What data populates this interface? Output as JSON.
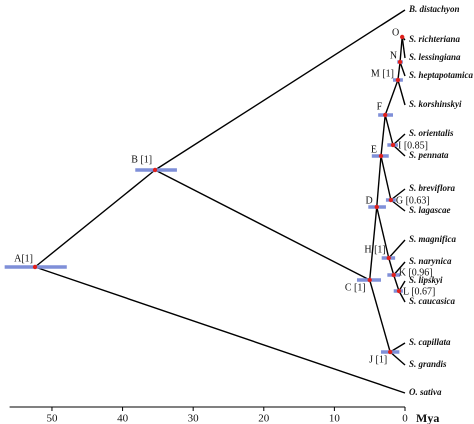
{
  "chart_data": {
    "type": "tree",
    "x_label": "Mya",
    "xlim": [
      56,
      0
    ],
    "xticks": [
      50,
      40,
      30,
      20,
      10,
      0
    ],
    "tips": [
      "B. distachyon",
      "S. richteriana",
      "S. lessingiana",
      "S. heptapotamica",
      "S. korshinskyi",
      "S. orientalis",
      "S. pennata",
      "S. breviflora",
      "S. lagascae",
      "S. magnifica",
      "S. narynica",
      "S. lipskyi",
      "S. caucasica",
      "S. capillata",
      "S. grandis",
      "O. sativa"
    ],
    "nodes": [
      {
        "label": "A[1]",
        "age": 52.4,
        "hpd": [
          56.7,
          47.9
        ]
      },
      {
        "label": "B [1]",
        "age": 35.4,
        "hpd": [
          38.2,
          32.3
        ]
      },
      {
        "label": "C [1]",
        "age": 5.0,
        "hpd": [
          6.8,
          3.4
        ]
      },
      {
        "label": "D",
        "age": 4.0,
        "hpd": [
          5.2,
          2.7
        ]
      },
      {
        "label": "E",
        "age": 3.4,
        "hpd": [
          4.7,
          2.3
        ]
      },
      {
        "label": "F",
        "age": 2.8,
        "hpd": [
          3.8,
          1.7
        ]
      },
      {
        "label": "G [0.63]",
        "age": 2.0,
        "hpd": [
          2.7,
          1.3
        ]
      },
      {
        "label": "H [1]",
        "age": 2.3,
        "hpd": [
          3.3,
          1.4
        ]
      },
      {
        "label": "I [0.85]",
        "age": 1.7,
        "hpd": [
          2.5,
          1.0
        ]
      },
      {
        "label": "J [1]",
        "age": 2.1,
        "hpd": [
          3.4,
          0.8
        ]
      },
      {
        "label": "K [0.96]",
        "age": 1.6,
        "hpd": [
          2.5,
          0.7
        ]
      },
      {
        "label": "L [0.67]",
        "age": 0.85,
        "hpd": [
          1.6,
          0.3
        ]
      },
      {
        "label": "M [1]",
        "age": 1.0,
        "hpd": [
          1.7,
          0.3
        ]
      },
      {
        "label": "N",
        "age": 0.7,
        "hpd": [
          1.1,
          0.3
        ]
      },
      {
        "label": "O",
        "age": 0.4,
        "hpd": [
          0.6,
          0.2
        ]
      }
    ]
  }
}
